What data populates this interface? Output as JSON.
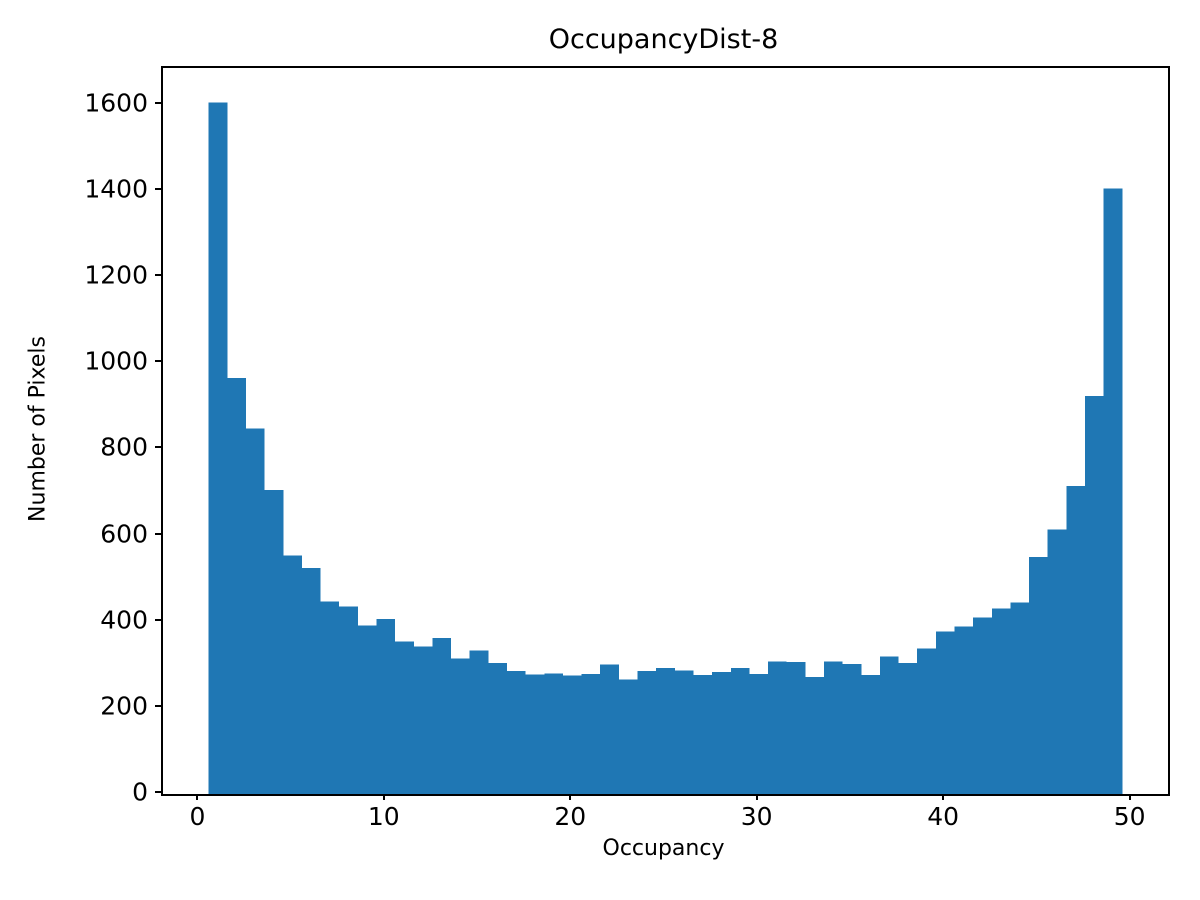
{
  "title": "OccupancyDist-8",
  "chart_data": {
    "type": "bar",
    "subtype": "histogram",
    "title": "OccupancyDist-8",
    "xlabel": "Occupancy",
    "ylabel": "Number of Pixels",
    "x": [
      1,
      2,
      3,
      4,
      5,
      6,
      7,
      8,
      9,
      10,
      11,
      12,
      13,
      14,
      15,
      16,
      17,
      18,
      19,
      20,
      21,
      22,
      23,
      24,
      25,
      26,
      27,
      28,
      29,
      30,
      31,
      32,
      33,
      34,
      35,
      36,
      37,
      38,
      39,
      40,
      41,
      42,
      43,
      44,
      45,
      46,
      47,
      48,
      49
    ],
    "values": [
      1605,
      966,
      848,
      706,
      554,
      524,
      447,
      435,
      391,
      406,
      354,
      342,
      362,
      314,
      333,
      304,
      286,
      277,
      280,
      275,
      278,
      300,
      266,
      286,
      292,
      287,
      276,
      283,
      292,
      279,
      308,
      306,
      272,
      308,
      302,
      276,
      319,
      304,
      338,
      377,
      389,
      410,
      431,
      445,
      550,
      614,
      715,
      924,
      1405
    ],
    "bin_width": 1,
    "bin_start": 0.5,
    "bin_end": 49.5,
    "xticks": [
      0,
      10,
      20,
      30,
      40,
      50
    ],
    "yticks": [
      0,
      200,
      400,
      600,
      800,
      1000,
      1200,
      1400,
      1600
    ],
    "xlim": [
      -1.95,
      51.95
    ],
    "ylim": [
      0,
      1685
    ],
    "bar_color": "#1f77b4",
    "axis_color": "#000000",
    "background_color": "#ffffff",
    "grid": false,
    "legend_position": "none"
  }
}
